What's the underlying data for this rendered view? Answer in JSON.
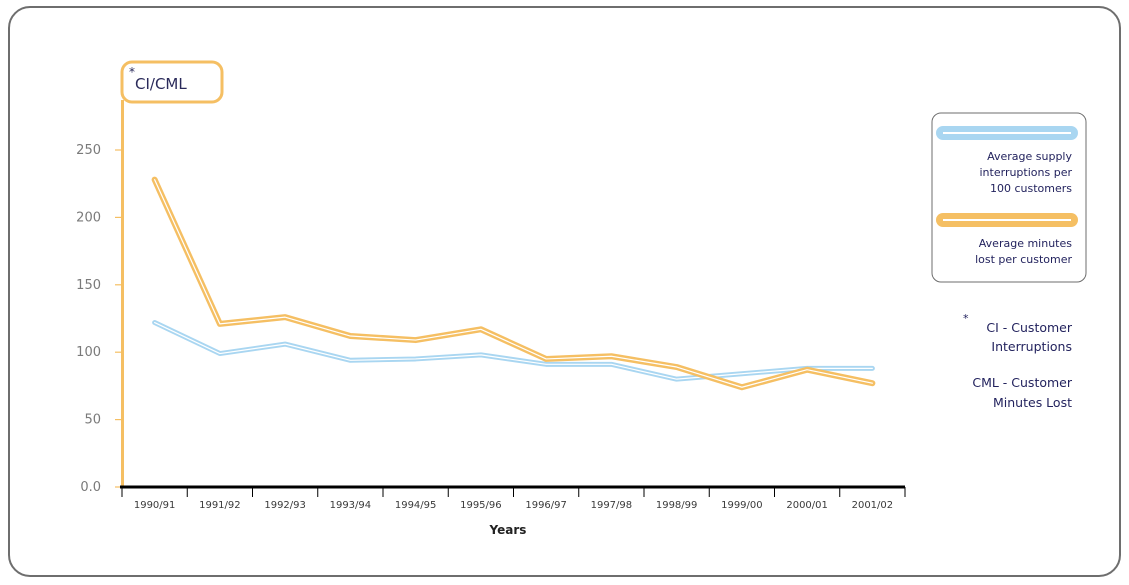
{
  "colors": {
    "interruptions": "#a9d6f1",
    "minutes": "#f5bf63",
    "axis_y": "#f5bf63",
    "axis_x": "#000000",
    "frame": "#6e6e6e",
    "text_dark": "#23235e"
  },
  "chart_data": {
    "type": "line",
    "unit_label_star": "*",
    "unit_label": "CI/CML",
    "xlabel": "Years",
    "ylabel": "",
    "ylim": [
      0,
      250
    ],
    "yticks": [
      0,
      50,
      100,
      150,
      200,
      250
    ],
    "ytick_labels": [
      "0.0",
      "50",
      "100",
      "150",
      "200",
      "250"
    ],
    "categories": [
      "1990/91",
      "1991/92",
      "1992/93",
      "1993/94",
      "1994/95",
      "1995/96",
      "1996/97",
      "1997/98",
      "1998/99",
      "1999/00",
      "2000/01",
      "2001/02"
    ],
    "series": [
      {
        "name": "Average supply interruptions per 100 customers",
        "legend_lines": [
          "Average supply",
          "interruptions per",
          "100 customers"
        ],
        "values": [
          122,
          99,
          106,
          94,
          95,
          98,
          91,
          91,
          80,
          84,
          88,
          88
        ]
      },
      {
        "name": "Average minutes lost per customer",
        "legend_lines": [
          "Average minutes",
          "lost per customer"
        ],
        "values": [
          228,
          121,
          126,
          112,
          109,
          117,
          95,
          97,
          89,
          74,
          87,
          77
        ]
      }
    ],
    "notes": [
      {
        "star": "*",
        "lines": [
          "CI - Customer",
          "Interruptions"
        ]
      },
      {
        "star": "",
        "lines": [
          "CML - Customer",
          "Minutes Lost"
        ]
      }
    ],
    "grid": false,
    "legend_position": "right"
  }
}
